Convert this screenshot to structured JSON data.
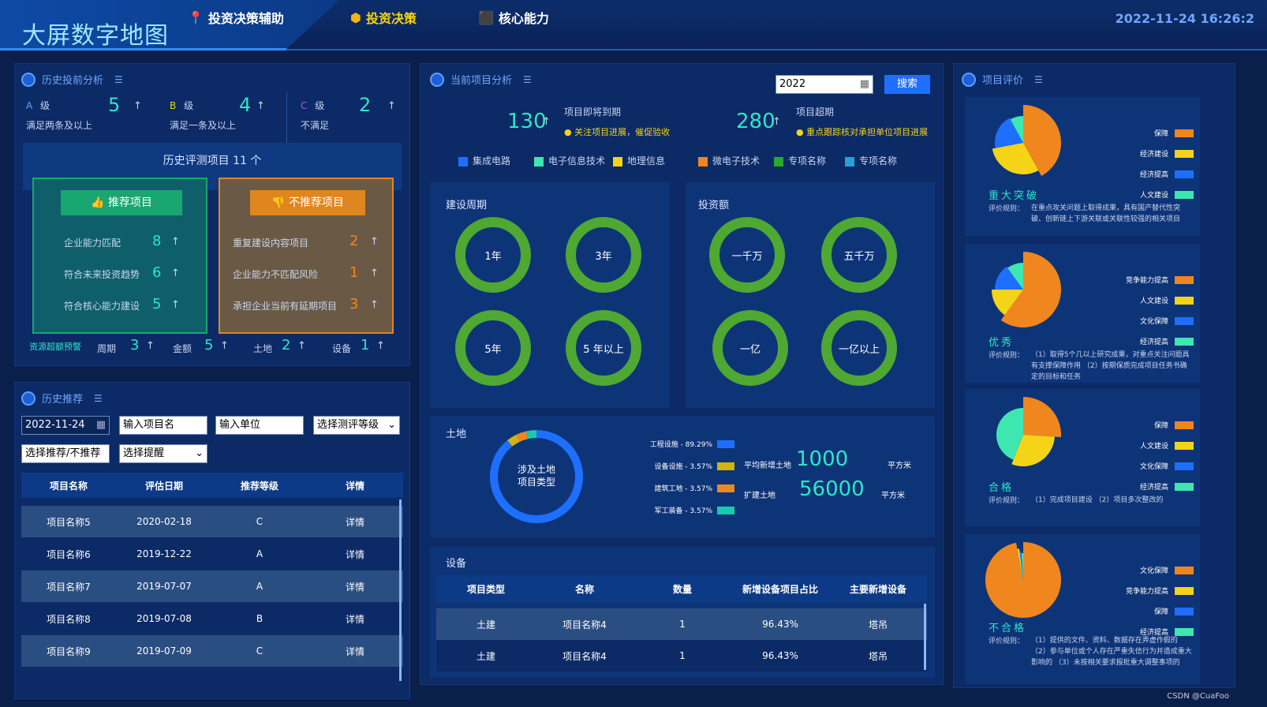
{
  "header": {
    "title": "大屏数字地图",
    "nav": [
      {
        "label": "投资决策辅助",
        "icon": "map-pin-icon"
      },
      {
        "label": "投资决策",
        "icon": "hexagon-icon"
      },
      {
        "label": "核心能力",
        "icon": "cube-icon"
      }
    ],
    "datetime": "2022-11-24 16:26:2"
  },
  "history_analysis": {
    "title": "历史投前分析",
    "grades": [
      {
        "letter": "A",
        "suffix": "级",
        "value": "5",
        "desc": "满足两条及以上"
      },
      {
        "letter": "B",
        "suffix": "级",
        "value": "4",
        "desc": "满足一条及以上"
      },
      {
        "letter": "C",
        "suffix": "级",
        "value": "2",
        "desc": "不满足"
      }
    ],
    "eval_count_label": "历史评测项目 11 个",
    "recommend": {
      "label": "推荐项目",
      "items": [
        {
          "name": "企业能力匹配",
          "value": "8"
        },
        {
          "name": "符合未来投资趋势",
          "value": "6"
        },
        {
          "name": "符合核心能力建设",
          "value": "5"
        }
      ]
    },
    "not_recommend": {
      "label": "不推荐项目",
      "items": [
        {
          "name": "重复建设内容项目",
          "value": "2"
        },
        {
          "name": "企业能力不匹配风险",
          "value": "1"
        },
        {
          "name": "承担企业当前有延期项目",
          "value": "3"
        }
      ]
    },
    "warning_label": "资源超额预警",
    "stats": [
      {
        "name": "周期",
        "value": "3"
      },
      {
        "name": "金额",
        "value": "5"
      },
      {
        "name": "土地",
        "value": "2"
      },
      {
        "name": "设备",
        "value": "1"
      }
    ],
    "arrow": "↑"
  },
  "history_recommend": {
    "title": "历史推荐",
    "date_value": "2022-11-24",
    "project_placeholder": "输入项目名",
    "unit_placeholder": "输入单位",
    "grade_select": "选择测评等级",
    "recommend_select": "选择推荐/不推荐",
    "remind_select": "选择提醒",
    "columns": [
      "项目名称",
      "评估日期",
      "推荐等级",
      "详情"
    ],
    "rows": [
      {
        "name": "项目名称5",
        "date": "2020-02-18",
        "grade": "C",
        "detail": "详情"
      },
      {
        "name": "项目名称6",
        "date": "2019-12-22",
        "grade": "A",
        "detail": "详情"
      },
      {
        "name": "项目名称7",
        "date": "2019-07-07",
        "grade": "A",
        "detail": "详情"
      },
      {
        "name": "项目名称8",
        "date": "2019-07-08",
        "grade": "B",
        "detail": "详情"
      },
      {
        "name": "项目名称9",
        "date": "2019-07-09",
        "grade": "C",
        "detail": "详情"
      }
    ]
  },
  "current_analysis": {
    "title": "当前项目分析",
    "year_value": "2022",
    "search_label": "搜索",
    "expiring": {
      "value": "130",
      "label": "项目即将到期",
      "note": "关注项目进展，催促验收"
    },
    "overdue": {
      "value": "280",
      "label": "项目超期",
      "note": "重点跟踪核对承担单位项目进展"
    },
    "legend": [
      {
        "name": "集成电路",
        "color": "#1e6fff"
      },
      {
        "name": "电子信息技术",
        "color": "#3ee6b0"
      },
      {
        "name": "地理信息",
        "color": "#f5d417"
      },
      {
        "name": "微电子技术",
        "color": "#f0861e"
      },
      {
        "name": "专项名称",
        "color": "#2aa92a"
      },
      {
        "name": "专项名称",
        "color": "#2a9fd6"
      }
    ],
    "cycle": {
      "title": "建设周期",
      "items": [
        "1年",
        "3年",
        "5年",
        "5 年以上"
      ]
    },
    "investment": {
      "title": "投资额",
      "items": [
        "一千万",
        "五千万",
        "一亿",
        "一亿以上"
      ]
    },
    "land": {
      "title": "土地",
      "center_label_1": "涉及土地",
      "center_label_2": "项目类型",
      "slices": [
        {
          "name": "工程设施 - 89.29%",
          "value": 89.29,
          "color": "#1e6fff"
        },
        {
          "name": "设备设施 - 3.57%",
          "value": 3.57,
          "color": "#d4b20f"
        },
        {
          "name": "建筑工地 - 3.57%",
          "value": 3.57,
          "color": "#f0861e"
        },
        {
          "name": "军工装备 - 3.57%",
          "value": 3.57,
          "color": "#19c9b0"
        }
      ],
      "avg_new_label": "平均新增土地",
      "avg_new_value": "1000",
      "expand_label": "扩建土地",
      "expand_value": "56000",
      "unit": "平方米"
    },
    "equipment": {
      "title": "设备",
      "columns": [
        "项目类型",
        "名称",
        "数量",
        "新增设备项目占比",
        "主要新增设备"
      ],
      "rows": [
        {
          "type": "土建",
          "name": "项目名称4",
          "qty": "1",
          "ratio": "96.43%",
          "main": "塔吊"
        },
        {
          "type": "土建",
          "name": "项目名称4",
          "qty": "1",
          "ratio": "96.43%",
          "main": "塔吊"
        }
      ]
    }
  },
  "project_eval": {
    "title": "项目评价",
    "rule_prefix": "评价规则：",
    "cards": [
      {
        "level": "重大突破",
        "legend": [
          {
            "name": "保障",
            "color": "#f0861e"
          },
          {
            "name": "经济建设",
            "color": "#f5d417"
          },
          {
            "name": "经济提高",
            "color": "#1e6fff"
          },
          {
            "name": "人文建设",
            "color": "#3ee6b0"
          }
        ],
        "slices": [
          42,
          30,
          20,
          8
        ],
        "rule": "在重点攻关问题上取得成果，具有国产替代性突破、创新链上下游关联或关联性较强的相关项目"
      },
      {
        "level": "优秀",
        "legend": [
          {
            "name": "竞争能力提高",
            "color": "#f0861e"
          },
          {
            "name": "人文建设",
            "color": "#f5d417"
          },
          {
            "name": "文化保障",
            "color": "#1e6fff"
          },
          {
            "name": "经济提高",
            "color": "#3ee6b0"
          }
        ],
        "slices": [
          60,
          15,
          15,
          10
        ],
        "rule": "（1）取得5个几以上研究成果，对重点关注问题具有支撑保障作用 （2）按期保质完成项目任务书确定的目标和任务"
      },
      {
        "level": "合格",
        "legend": [
          {
            "name": "保障",
            "color": "#f0861e"
          },
          {
            "name": "人文建设",
            "color": "#f5d417"
          },
          {
            "name": "文化保障",
            "color": "#1e6fff"
          },
          {
            "name": "经济提高",
            "color": "#3ee6b0"
          }
        ],
        "slices": [
          26,
          30,
          0,
          44
        ],
        "rule": "（1）完成项目建设 （2）项目多次整改的"
      },
      {
        "level": "不合格",
        "legend": [
          {
            "name": "文化保障",
            "color": "#f0861e"
          },
          {
            "name": "竞争能力提高",
            "color": "#f5d417"
          },
          {
            "name": "保障",
            "color": "#1e6fff"
          },
          {
            "name": "经济提高",
            "color": "#3ee6b0"
          }
        ],
        "slices": [
          97,
          1,
          1,
          1
        ],
        "rule": "（1）提供的文件、资料、数据存在弄虚作假的 （2）参与单位或个人存在严重失信行为并造成重大影响的 （3）未按相关要求报批重大调整事项的"
      }
    ]
  },
  "watermark": "CSDN @CuaFoo"
}
